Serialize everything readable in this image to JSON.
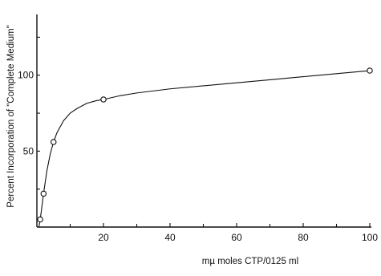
{
  "chart_data": {
    "type": "scatter",
    "title": "",
    "xlabel": "mµ moles CTP/0125 ml",
    "ylabel": "Percent Incorporation of \"Complete Medium\"",
    "xlim": [
      0,
      100
    ],
    "ylim": [
      0,
      140
    ],
    "x_ticks": [
      20,
      40,
      60,
      80,
      100
    ],
    "x_tick_labels": [
      "20",
      "40",
      "60",
      "80",
      "100"
    ],
    "y_ticks": [
      50,
      100
    ],
    "y_tick_labels": [
      "50",
      "100"
    ],
    "grid": false,
    "legend": "none",
    "series": [
      {
        "x": [
          1,
          2,
          5,
          20,
          100
        ],
        "y": [
          5,
          22,
          56,
          84,
          103
        ]
      }
    ],
    "fit_curve": {
      "x": [
        0.6,
        1,
        2,
        3,
        4,
        5,
        6,
        8,
        10,
        12,
        15,
        18,
        20,
        25,
        30,
        40,
        50,
        60,
        70,
        80,
        90,
        100
      ],
      "y": [
        0,
        5,
        22,
        37,
        48,
        56,
        62,
        70,
        75,
        78,
        81.5,
        83.3,
        84,
        86.5,
        88.3,
        91,
        93,
        95,
        97,
        99,
        101,
        103
      ]
    }
  }
}
